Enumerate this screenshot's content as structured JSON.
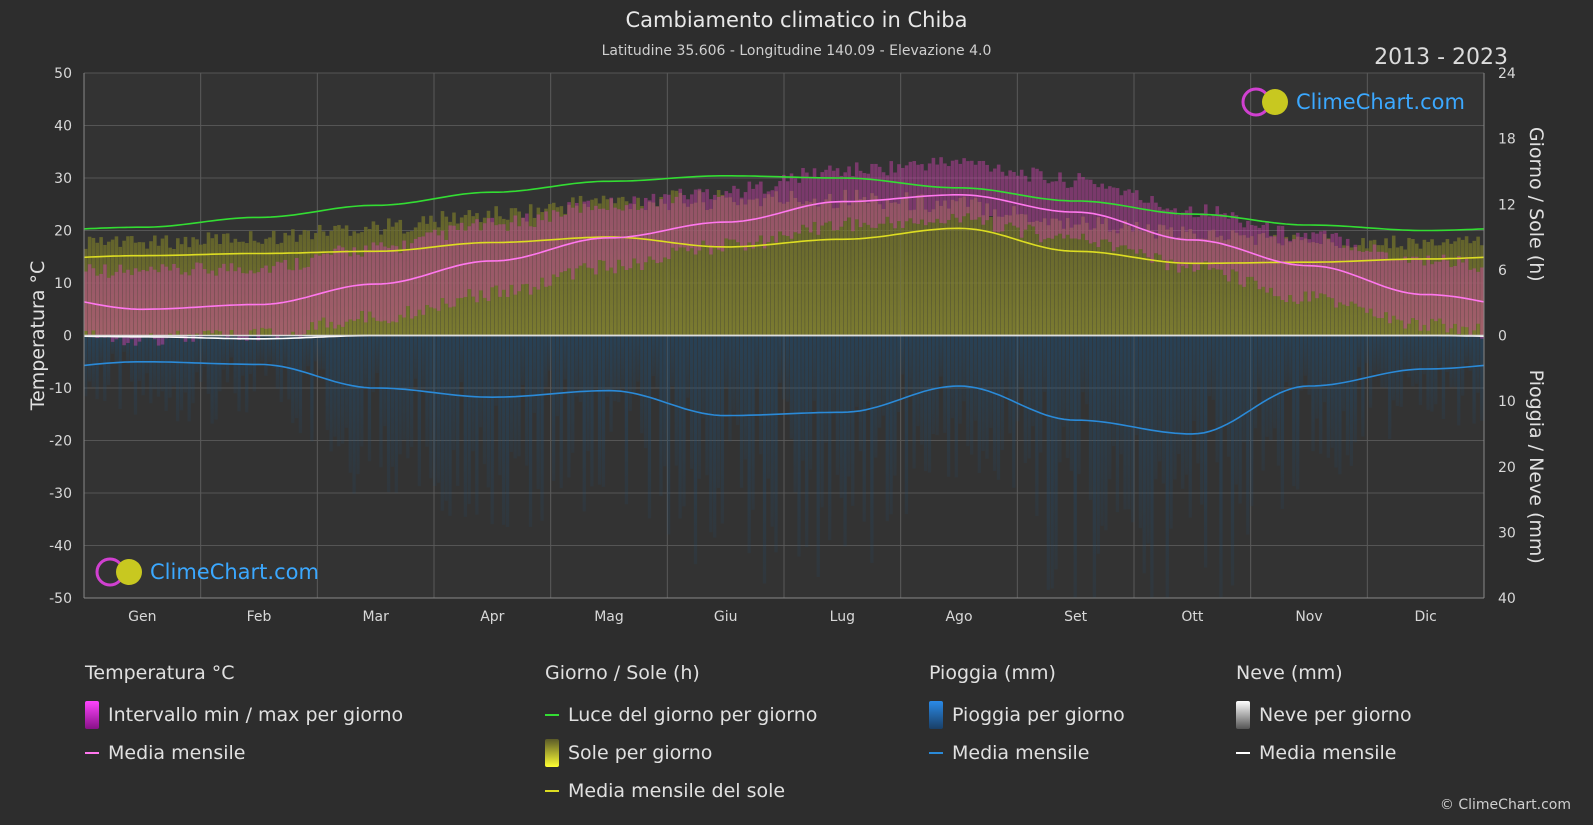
{
  "title": "Cambiamento climatico in Chiba",
  "subtitle": "Latitudine 35.606 - Longitudine 140.09 - Elevazione 4.0",
  "years": "2013 - 2023",
  "logo_text": "ClimeChart.com",
  "copyright": "© ClimeChart.com",
  "colors": {
    "background": "#2d2d2d",
    "daylight": "#33dd33",
    "sun_mean": "#dddd22",
    "sun_bar": "#8a8a2a",
    "temp_range": "#cc33aa",
    "temp_mean": "#ff77ee",
    "rain_bar": "#1f5f8f",
    "rain_mean": "#2a8ad8",
    "snow_bar": "#909090",
    "snow_mean": "#ffffff"
  },
  "legend": {
    "temperature": {
      "heading": "Temperatura °C",
      "range": "Intervallo min / max per giorno",
      "mean": "Media mensile"
    },
    "sun": {
      "heading": "Giorno / Sole (h)",
      "daylight": "Luce del giorno per giorno",
      "sunshine": "Sole per giorno",
      "mean": "Media mensile del sole"
    },
    "rain": {
      "heading": "Pioggia (mm)",
      "per_day": "Pioggia per giorno",
      "mean": "Media mensile"
    },
    "snow": {
      "heading": "Neve (mm)",
      "per_day": "Neve per giorno",
      "mean": "Media mensile"
    }
  },
  "chart_data": {
    "type": "area",
    "categories": [
      "Gen",
      "Feb",
      "Mar",
      "Apr",
      "Mag",
      "Giu",
      "Lug",
      "Ago",
      "Set",
      "Ott",
      "Nov",
      "Dic"
    ],
    "y_left": {
      "label": "Temperatura °C",
      "min": -50,
      "max": 50,
      "ticks": [
        50,
        40,
        30,
        20,
        10,
        0,
        -10,
        -20,
        -30,
        -40,
        -50
      ]
    },
    "y_right_top": {
      "label": "Giorno / Sole (h)",
      "min": 0,
      "max": 24,
      "ticks": [
        24,
        18,
        12,
        6,
        0
      ]
    },
    "y_right_bottom": {
      "label": "Pioggia / Neve (mm)",
      "min": 0,
      "max": 40,
      "ticks": [
        0,
        10,
        20,
        30,
        40
      ]
    },
    "grid": true,
    "series": [
      {
        "name": "Luce del giorno per giorno",
        "axis": "sun_h",
        "values": [
          9.9,
          10.8,
          11.9,
          13.1,
          14.1,
          14.6,
          14.4,
          13.5,
          12.3,
          11.1,
          10.1,
          9.6
        ]
      },
      {
        "name": "Media mensile del sole",
        "axis": "sun_h",
        "values": [
          7.3,
          7.5,
          7.7,
          8.5,
          9.0,
          8.1,
          8.8,
          9.8,
          7.7,
          6.6,
          6.7,
          7.0
        ]
      },
      {
        "name": "Sole per giorno",
        "axis": "sun_h",
        "values": [
          8.7,
          9.2,
          10.2,
          11.3,
          12.6,
          12.7,
          12.9,
          12.3,
          10.6,
          9.5,
          8.9,
          8.7
        ]
      },
      {
        "name": "Temperatura media mensile",
        "axis": "temp_c",
        "values": [
          5.0,
          5.9,
          9.8,
          14.2,
          18.6,
          21.6,
          25.5,
          26.8,
          23.5,
          18.2,
          13.3,
          7.8
        ]
      },
      {
        "name": "Temperatura max giornaliera",
        "axis": "temp_c",
        "values": [
          10.5,
          11.5,
          15.0,
          19.5,
          23.5,
          26.0,
          30.0,
          31.5,
          28.0,
          22.5,
          17.5,
          13.0
        ]
      },
      {
        "name": "Temperatura min giornaliera",
        "axis": "temp_c",
        "values": [
          1.0,
          1.5,
          5.0,
          9.5,
          14.5,
          18.5,
          22.5,
          23.5,
          20.0,
          14.5,
          8.5,
          3.5
        ]
      },
      {
        "name": "Pioggia media mensile",
        "axis": "precip_mm",
        "values": [
          4.0,
          4.4,
          8.0,
          9.4,
          8.4,
          12.2,
          11.7,
          7.7,
          12.9,
          15.0,
          7.7,
          5.1
        ]
      },
      {
        "name": "Neve media mensile",
        "axis": "precip_mm",
        "values": [
          0.2,
          0.5,
          0.0,
          0.0,
          0.0,
          0.0,
          0.0,
          0.0,
          0.0,
          0.0,
          0.0,
          0.0
        ]
      }
    ]
  }
}
